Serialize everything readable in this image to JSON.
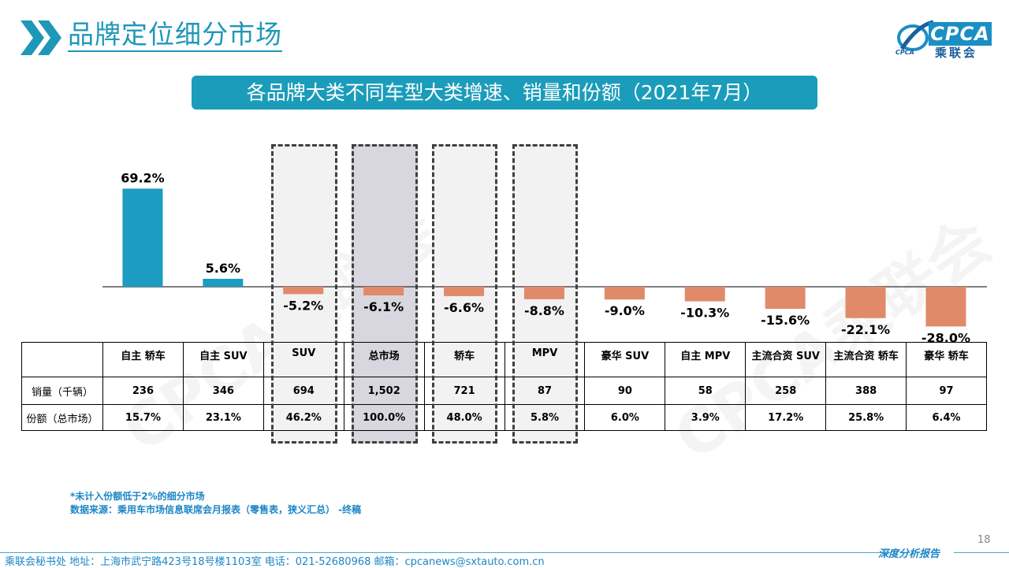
{
  "page": {
    "title": "品牌定位细分市场",
    "banner": "各品牌大类不同车型大类增速、销量和份额（2021年7月）",
    "page_number": "18",
    "report_label": "深度分析报告",
    "footer": "乘联会秘书处   地址：上海市武宁路423号18号楼1103室  电话：021-52680968   邮箱：cpcanews@sxtauto.com.cn",
    "note_lines": [
      "*未计入份额低于2%的细分市场",
      "数据来源：乘用车市场信息联席会月报表（零售表，狭义汇总） -终稿"
    ]
  },
  "logo": {
    "mark": "CPCA",
    "cn": "乘联会",
    "small": "CPCA"
  },
  "watermark": "CPCA乘联会",
  "colors": {
    "positive": "#1b9cc0",
    "negative": "#e08a6a",
    "accent": "#1f97b8",
    "highlight_dark": "#d8d6de",
    "highlight_light": "#f2f2f2"
  },
  "chart_data": {
    "type": "bar",
    "categories": [
      "自主 轿车",
      "自主 SUV",
      "SUV",
      "总市场",
      "轿车",
      "MPV",
      "豪华 SUV",
      "自主 MPV",
      "主流合资 SUV",
      "主流合资 轿车",
      "豪华 轿车"
    ],
    "series": [
      {
        "values": [
          69.2,
          5.6,
          -5.2,
          -6.1,
          -6.6,
          -8.8,
          -9.0,
          -10.3,
          -15.6,
          -22.1,
          -28.0
        ]
      }
    ],
    "value_labels": [
      "69.2%",
      "5.6%",
      "-5.2%",
      "-6.1%",
      "-6.6%",
      "-8.8%",
      "-9.0%",
      "-10.3%",
      "-15.6%",
      "-22.1%",
      "-28.0%"
    ],
    "highlighted_categories": [
      "SUV",
      "总市场",
      "轿车",
      "MPV"
    ]
  },
  "table": {
    "row_labels": [
      "销量（千辆）",
      "份额（总市场）"
    ],
    "sales": [
      "236",
      "346",
      "694",
      "1,502",
      "721",
      "87",
      "90",
      "58",
      "258",
      "388",
      "97"
    ],
    "shares": [
      "15.7%",
      "23.1%",
      "46.2%",
      "100.0%",
      "48.0%",
      "5.8%",
      "6.0%",
      "3.9%",
      "17.2%",
      "25.8%",
      "6.4%"
    ]
  }
}
